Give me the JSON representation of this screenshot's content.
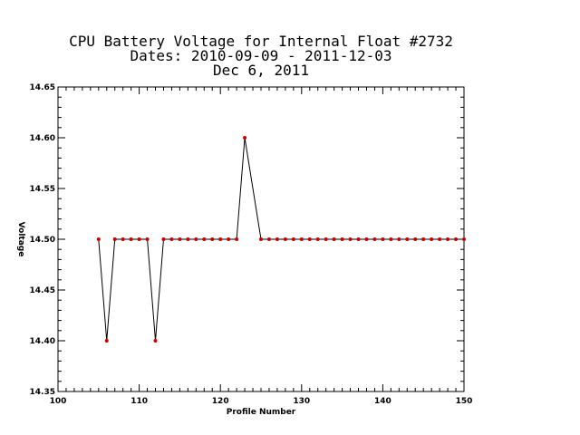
{
  "chart_data": {
    "type": "line",
    "title_lines": [
      "CPU Battery Voltage for Internal Float #2732",
      "Dates:  2010-09-09 -  2011-12-03",
      "Dec  6, 2011"
    ],
    "xlabel": "Profile Number",
    "ylabel": "Voltage",
    "xlim": [
      100,
      150
    ],
    "ylim": [
      14.35,
      14.65
    ],
    "xticks": [
      100,
      110,
      120,
      130,
      140,
      150
    ],
    "xtick_labels": [
      "100",
      "110",
      "120",
      "130",
      "140",
      "150"
    ],
    "yticks": [
      14.35,
      14.4,
      14.45,
      14.5,
      14.55,
      14.6,
      14.65
    ],
    "ytick_labels": [
      "14.35",
      "14.40",
      "14.45",
      "14.50",
      "14.55",
      "14.60",
      "14.65"
    ],
    "line_color": "#000000",
    "marker_color": "#cc0000",
    "series": [
      {
        "x": [
          105,
          106,
          107,
          108,
          109,
          110,
          111,
          112,
          113,
          114,
          115,
          116,
          117,
          118,
          119,
          120,
          121,
          122,
          123,
          125,
          126,
          127,
          128,
          129,
          130,
          131,
          132,
          133,
          134,
          135,
          136,
          137,
          138,
          139,
          140,
          141,
          142,
          143,
          144,
          145,
          146,
          147,
          148,
          149,
          150
        ],
        "y": [
          14.5,
          14.4,
          14.5,
          14.5,
          14.5,
          14.5,
          14.5,
          14.4,
          14.5,
          14.5,
          14.5,
          14.5,
          14.5,
          14.5,
          14.5,
          14.5,
          14.5,
          14.5,
          14.6,
          14.5,
          14.5,
          14.5,
          14.5,
          14.5,
          14.5,
          14.5,
          14.5,
          14.5,
          14.5,
          14.5,
          14.5,
          14.5,
          14.5,
          14.5,
          14.5,
          14.5,
          14.5,
          14.5,
          14.5,
          14.5,
          14.5,
          14.5,
          14.5,
          14.5,
          14.5
        ]
      }
    ]
  }
}
